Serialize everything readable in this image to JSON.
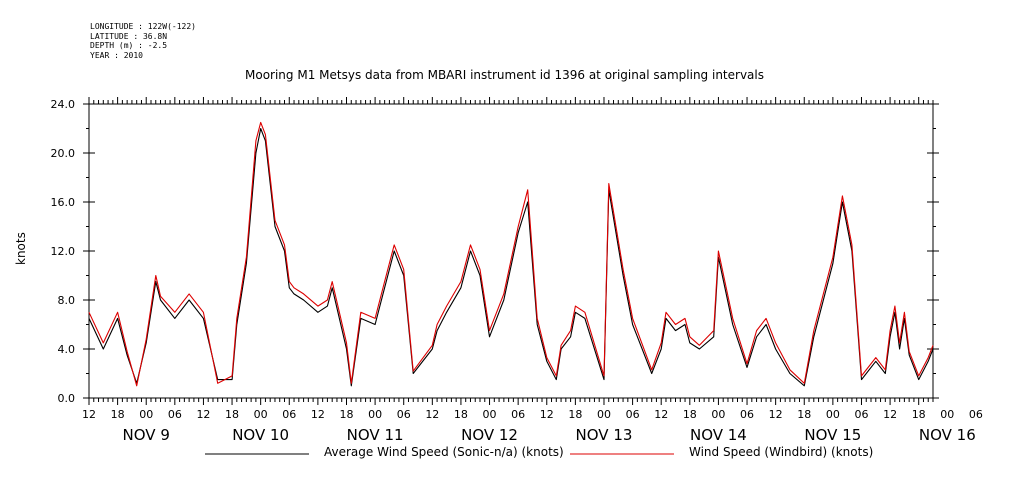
{
  "header": {
    "longitude": "LONGITUDE : 122W(-122)",
    "latitude": "LATITUDE : 36.8N",
    "depth": "DEPTH (m) : -2.5",
    "year": "YEAR : 2010"
  },
  "colors": {
    "average": "#000000",
    "windbird": "#dd0000",
    "axis": "#000000"
  },
  "chart_data": {
    "type": "line",
    "title": "Mooring M1 Metsys data from MBARI instrument id 1396 at original sampling intervals",
    "ylabel": "knots",
    "ylim": [
      0,
      24
    ],
    "yticks": [
      "0.0",
      "4.0",
      "8.0",
      "12.0",
      "16.0",
      "20.0",
      "24.0"
    ],
    "x_units": "hours since Nov 9 00:00 2010",
    "xlim": [
      -12,
      165
    ],
    "hour_ticks": [
      "12",
      "18",
      "00",
      "06",
      "12",
      "18",
      "00",
      "06",
      "12",
      "18",
      "00",
      "06",
      "12",
      "18",
      "00",
      "06",
      "12",
      "18",
      "00",
      "06",
      "12",
      "18",
      "00",
      "06",
      "12",
      "18",
      "00",
      "06",
      "12",
      "18",
      "00",
      "06"
    ],
    "date_labels": [
      "NOV  9",
      "NOV 10",
      "NOV 11",
      "NOV 12",
      "NOV 13",
      "NOV 14",
      "NOV 15",
      "NOV 16"
    ],
    "series": [
      {
        "name": "Average Wind Speed (Sonic-n/a) (knots)",
        "color": "#000000",
        "x": [
          -12,
          -9,
          -6,
          -4,
          -2,
          0,
          2,
          3,
          6,
          9,
          12,
          15,
          18,
          19,
          21,
          23,
          24,
          25,
          27,
          29,
          30,
          31,
          33,
          36,
          38,
          39,
          42,
          43,
          45,
          48,
          50,
          52,
          54,
          56,
          60,
          61,
          63,
          66,
          68,
          70,
          72,
          75,
          78,
          80,
          82,
          84,
          86,
          87,
          89,
          90,
          92,
          96,
          97,
          100,
          102,
          106,
          108,
          109,
          111,
          113,
          114,
          116,
          119,
          120,
          123,
          126,
          128,
          130,
          132,
          135,
          138,
          140,
          144,
          146,
          148,
          150,
          153,
          155,
          156,
          157,
          158,
          159,
          160,
          162,
          164,
          165
        ],
        "y": [
          6.5,
          4.0,
          6.5,
          3.5,
          1.2,
          4.5,
          9.5,
          8.0,
          6.5,
          8.0,
          6.5,
          1.5,
          1.5,
          6.0,
          11.0,
          20.0,
          22.0,
          21.0,
          14.0,
          12.0,
          9.0,
          8.5,
          8.0,
          7.0,
          7.5,
          9.0,
          4.0,
          1.0,
          6.5,
          6.0,
          9.0,
          12.0,
          10.0,
          2.0,
          4.0,
          5.5,
          7.0,
          9.0,
          12.0,
          10.0,
          5.0,
          8.0,
          13.5,
          16.0,
          6.0,
          3.0,
          1.5,
          4.0,
          5.0,
          7.0,
          6.5,
          1.5,
          17.0,
          10.0,
          6.0,
          2.0,
          4.0,
          6.5,
          5.5,
          6.0,
          4.5,
          4.0,
          5.0,
          11.5,
          6.0,
          2.5,
          5.0,
          6.0,
          4.0,
          2.0,
          1.0,
          5.0,
          11.0,
          16.0,
          12.0,
          1.5,
          3.0,
          2.0,
          5.0,
          7.0,
          4.0,
          6.5,
          3.5,
          1.5,
          3.0,
          4.0
        ]
      },
      {
        "name": "Wind Speed (Windbird) (knots)",
        "color": "#dd0000",
        "x": [
          -12,
          -9,
          -6,
          -4,
          -2,
          0,
          2,
          3,
          6,
          9,
          12,
          15,
          18,
          19,
          21,
          23,
          24,
          25,
          27,
          29,
          30,
          31,
          33,
          36,
          38,
          39,
          42,
          43,
          45,
          48,
          50,
          52,
          54,
          56,
          60,
          61,
          63,
          66,
          68,
          70,
          72,
          75,
          78,
          80,
          82,
          84,
          86,
          87,
          89,
          90,
          92,
          96,
          97,
          100,
          102,
          106,
          108,
          109,
          111,
          113,
          114,
          116,
          119,
          120,
          123,
          126,
          128,
          130,
          132,
          135,
          138,
          140,
          144,
          146,
          148,
          150,
          153,
          155,
          156,
          157,
          158,
          159,
          160,
          162,
          164,
          165
        ],
        "y": [
          7.0,
          4.5,
          7.0,
          3.8,
          1.0,
          4.8,
          10.0,
          8.3,
          7.0,
          8.5,
          7.0,
          1.2,
          1.8,
          6.5,
          11.5,
          21.0,
          22.5,
          21.5,
          14.5,
          12.5,
          9.5,
          9.0,
          8.5,
          7.5,
          8.0,
          9.5,
          4.5,
          1.2,
          7.0,
          6.5,
          9.5,
          12.5,
          10.5,
          2.2,
          4.3,
          6.0,
          7.5,
          9.5,
          12.5,
          10.5,
          5.5,
          8.5,
          14.0,
          17.0,
          6.5,
          3.3,
          1.8,
          4.3,
          5.5,
          7.5,
          7.0,
          1.8,
          17.5,
          10.5,
          6.5,
          2.3,
          4.5,
          7.0,
          6.0,
          6.5,
          5.0,
          4.3,
          5.5,
          12.0,
          6.5,
          2.8,
          5.5,
          6.5,
          4.5,
          2.3,
          1.2,
          5.5,
          11.5,
          16.5,
          12.5,
          1.8,
          3.3,
          2.3,
          5.5,
          7.5,
          4.5,
          7.0,
          3.8,
          1.8,
          3.3,
          4.3
        ]
      }
    ]
  }
}
